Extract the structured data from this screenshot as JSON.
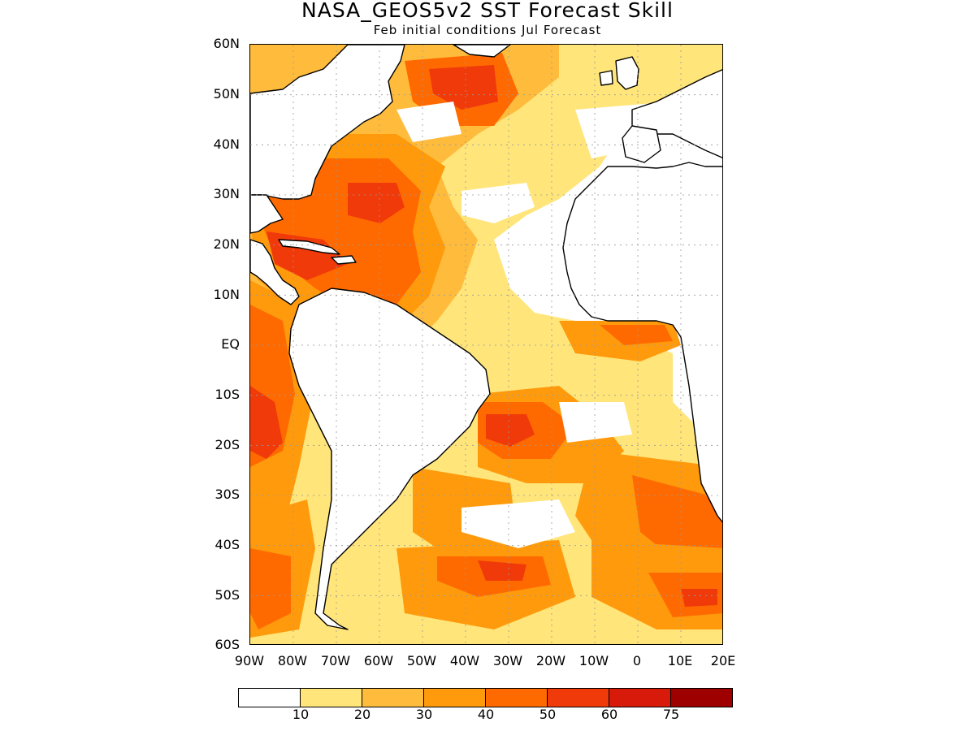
{
  "title": "NASA_GEOS5v2  SST  Forecast  Skill",
  "subtitle": "Feb  initial  conditions    Jul  Forecast",
  "lat_labels": [
    "60N",
    "50N",
    "40N",
    "30N",
    "20N",
    "10N",
    "EQ",
    "10S",
    "20S",
    "30S",
    "40S",
    "50S",
    "60S"
  ],
  "lon_labels": [
    "90W",
    "80W",
    "70W",
    "60W",
    "50W",
    "40W",
    "30W",
    "20W",
    "10W",
    "0",
    "10E",
    "20E"
  ],
  "colorbar": {
    "colors": [
      "#ffffff",
      "#ffe57a",
      "#ffbb3c",
      "#ff9a0c",
      "#ff6a00",
      "#f03a0a",
      "#d81a0a",
      "#9e0000"
    ],
    "labels": [
      "10",
      "20",
      "30",
      "40",
      "50",
      "60",
      "75"
    ]
  },
  "map": {
    "extent": {
      "lon": [
        -90,
        20
      ],
      "lat": [
        -60,
        60
      ]
    },
    "colors": {
      "land": "#ffffff",
      "coast": "#000000",
      "grid": "#9a9a9a"
    }
  }
}
